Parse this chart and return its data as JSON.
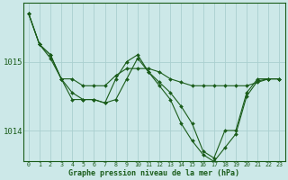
{
  "title": "Graphe pression niveau de la mer (hPa)",
  "background_color": "#cce8e8",
  "line_color": "#1a5c1a",
  "grid_color": "#aacfcf",
  "x_ticks": [
    0,
    1,
    2,
    3,
    4,
    5,
    6,
    7,
    8,
    9,
    10,
    11,
    12,
    13,
    14,
    15,
    16,
    17,
    18,
    19,
    20,
    21,
    22,
    23
  ],
  "ylim": [
    1013.55,
    1015.85
  ],
  "yticks": [
    1014.0,
    1015.0
  ],
  "series": [
    [
      1015.7,
      1015.25,
      1015.1,
      1014.75,
      1014.75,
      1014.65,
      1014.65,
      1014.65,
      1014.8,
      1014.9,
      1014.9,
      1014.9,
      1014.85,
      1014.75,
      1014.7,
      1014.65,
      1014.65,
      1014.65,
      1014.65,
      1014.65,
      1014.65,
      1014.7,
      1014.75,
      1014.75
    ],
    [
      1015.7,
      1015.25,
      1015.1,
      1014.75,
      1014.55,
      1014.45,
      1014.45,
      1014.4,
      1014.75,
      1015.0,
      1015.1,
      1014.85,
      1014.7,
      1014.55,
      1014.35,
      1014.1,
      1013.7,
      1013.6,
      1014.0,
      1014.0,
      1014.55,
      1014.75,
      1014.75,
      1014.75
    ],
    [
      1015.7,
      1015.25,
      1015.05,
      1014.75,
      1014.45,
      1014.45,
      1014.45,
      1014.4,
      1014.45,
      1014.75,
      1015.05,
      1014.85,
      1014.65,
      1014.45,
      1014.1,
      1013.85,
      1013.65,
      1013.55,
      1013.75,
      1013.95,
      1014.5,
      1014.72,
      1014.75,
      1014.75
    ]
  ]
}
